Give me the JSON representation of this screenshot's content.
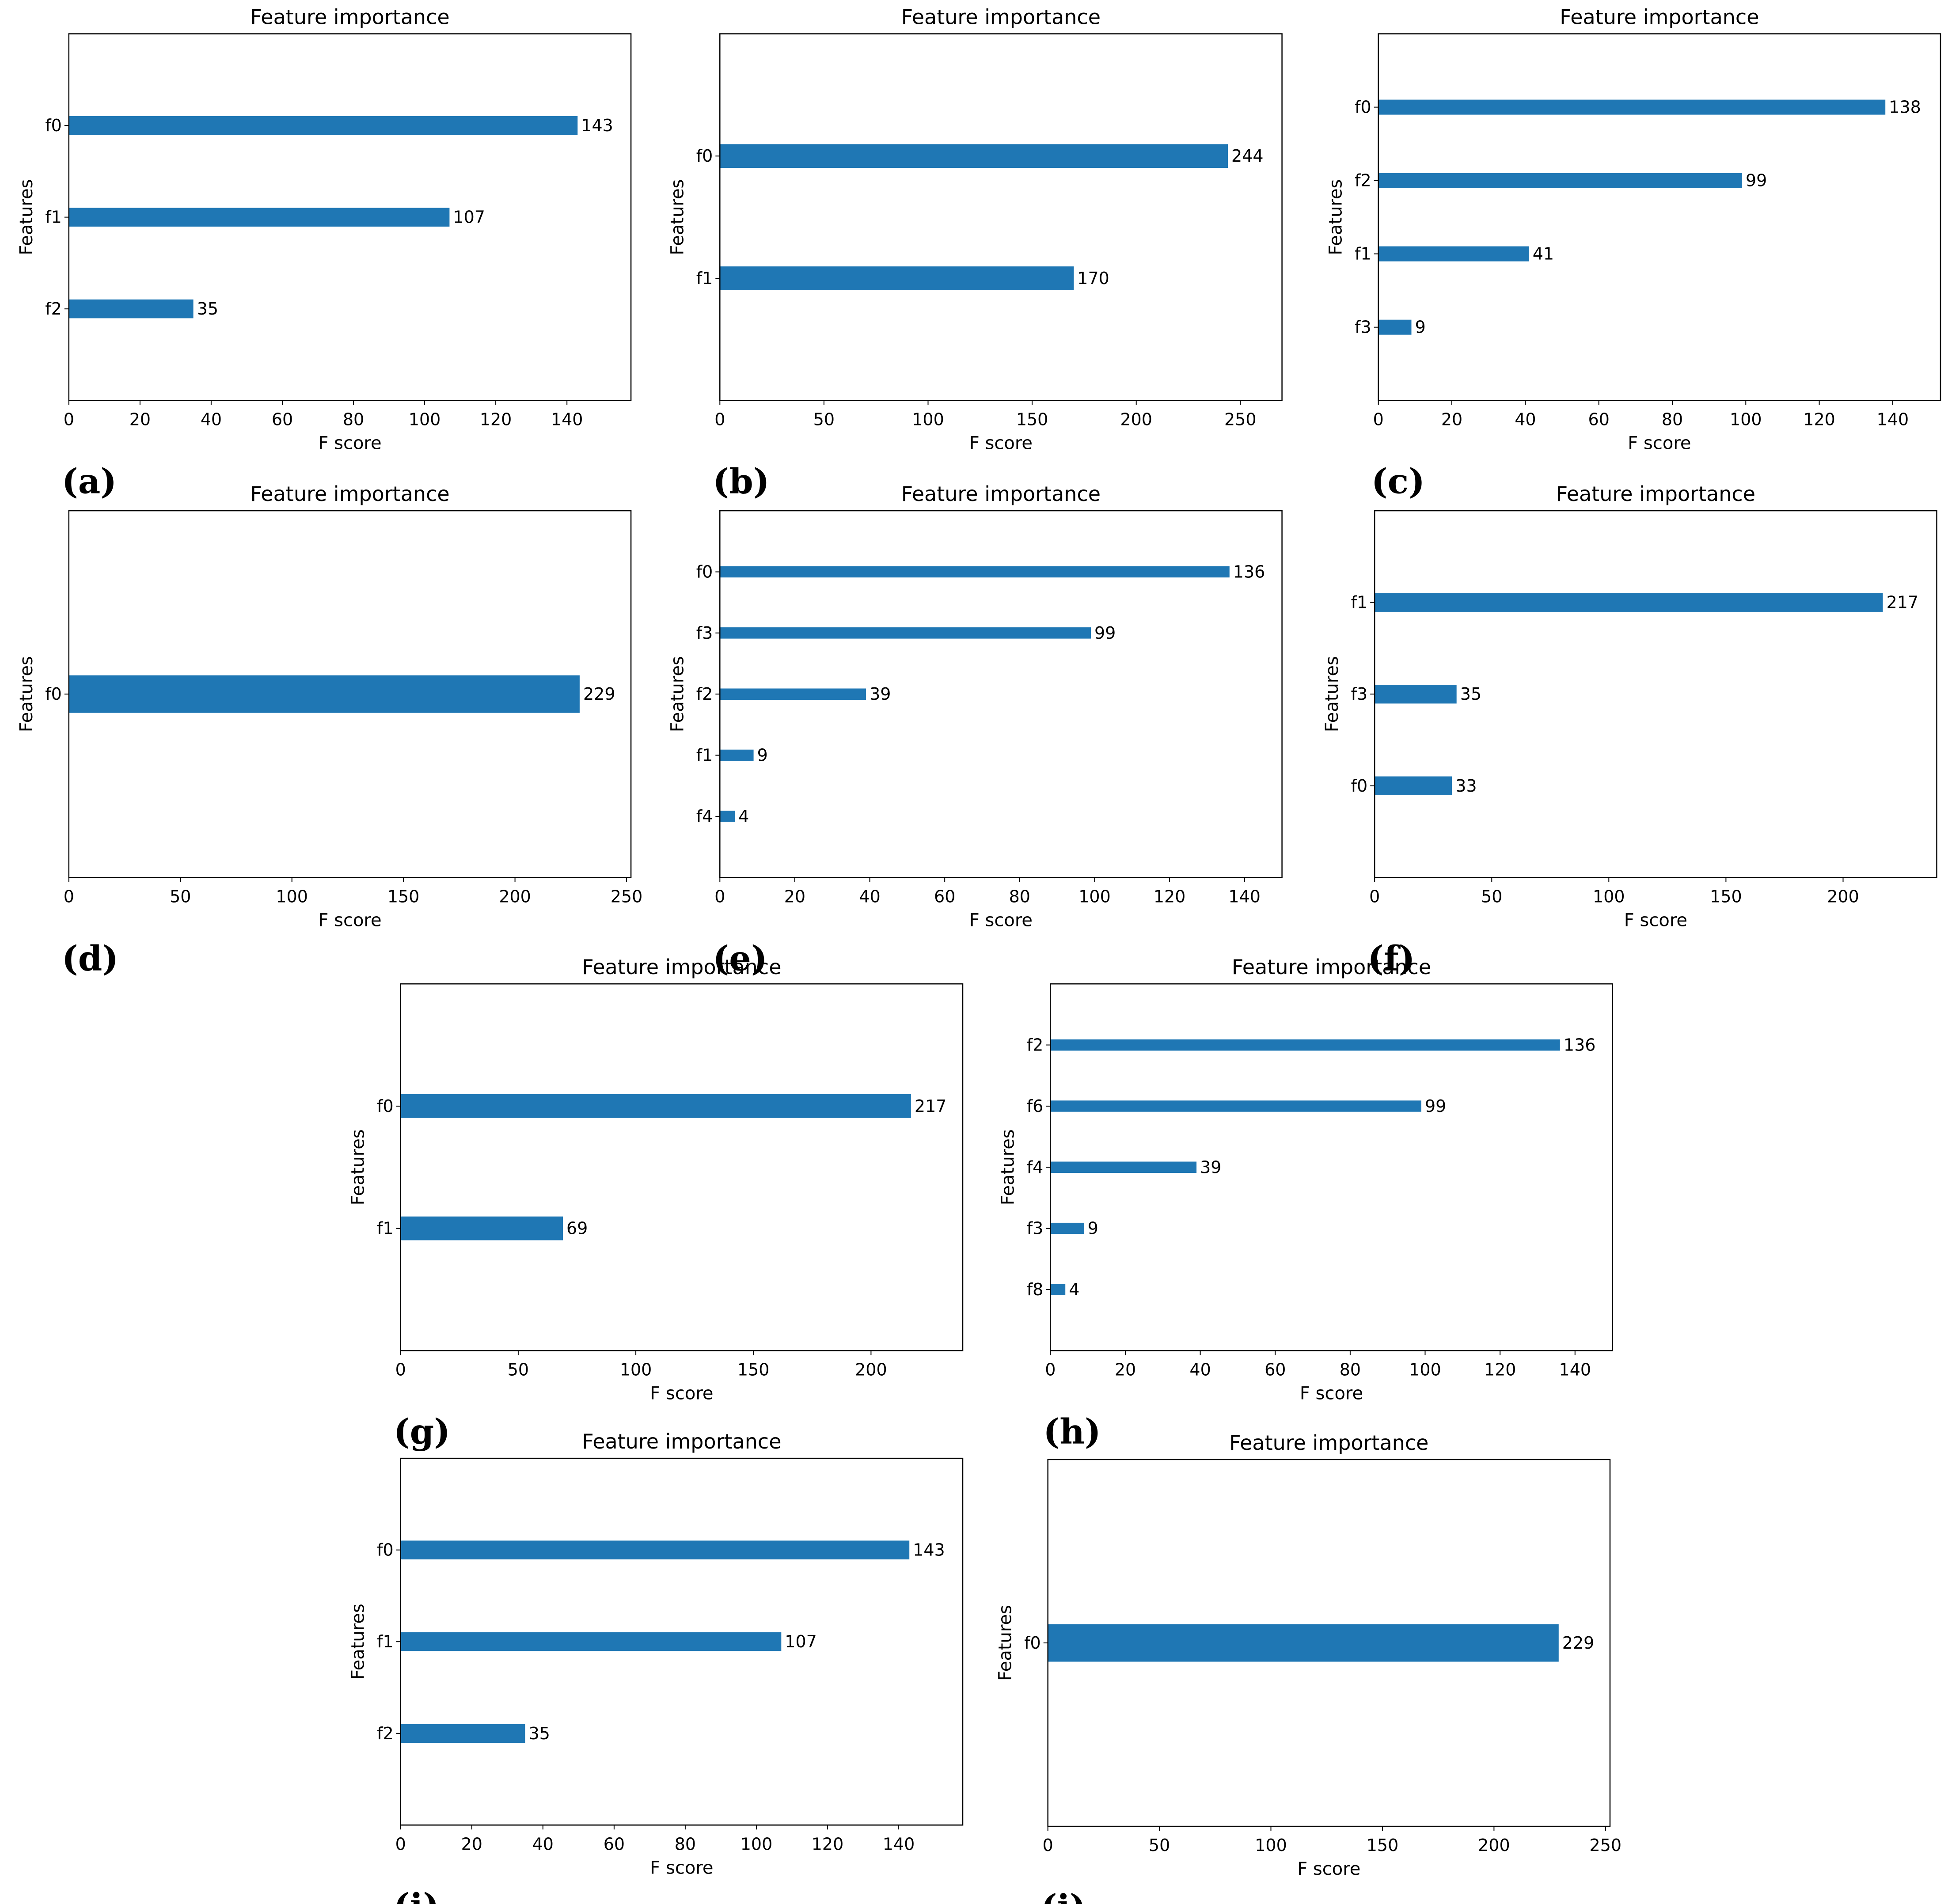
{
  "figure": {
    "colors": {
      "bar": "#1f77b4",
      "frame": "#000000",
      "text": "#000000"
    }
  },
  "chart_data": [
    {
      "panel": "(a)",
      "type": "bar",
      "orientation": "horizontal",
      "title": "Feature importance",
      "xlabel": "F score",
      "ylabel": "Features",
      "xlim": [
        0,
        158
      ],
      "xticks": [
        0,
        20,
        40,
        60,
        80,
        100,
        120,
        140
      ],
      "categories": [
        "f0",
        "f1",
        "f2"
      ],
      "values": [
        143,
        107,
        35
      ]
    },
    {
      "panel": "(b)",
      "type": "bar",
      "orientation": "horizontal",
      "title": "Feature importance",
      "xlabel": "F score",
      "ylabel": "Features",
      "xlim": [
        0,
        270
      ],
      "xticks": [
        0,
        50,
        100,
        150,
        200,
        250
      ],
      "categories": [
        "f0",
        "f1"
      ],
      "values": [
        244,
        170
      ]
    },
    {
      "panel": "(c)",
      "type": "bar",
      "orientation": "horizontal",
      "title": "Feature importance",
      "xlabel": "F score",
      "ylabel": "Features",
      "xlim": [
        0,
        153
      ],
      "xticks": [
        0,
        20,
        40,
        60,
        80,
        100,
        120,
        140
      ],
      "categories": [
        "f0",
        "f2",
        "f1",
        "f3"
      ],
      "values": [
        138,
        99,
        41,
        9
      ]
    },
    {
      "panel": "(d)",
      "type": "bar",
      "orientation": "horizontal",
      "title": "Feature importance",
      "xlabel": "F score",
      "ylabel": "Features",
      "xlim": [
        0,
        252
      ],
      "xticks": [
        0,
        50,
        100,
        150,
        200,
        250
      ],
      "categories": [
        "f0"
      ],
      "values": [
        229
      ]
    },
    {
      "panel": "(e)",
      "type": "bar",
      "orientation": "horizontal",
      "title": "Feature importance",
      "xlabel": "F score",
      "ylabel": "Features",
      "xlim": [
        0,
        150
      ],
      "xticks": [
        0,
        20,
        40,
        60,
        80,
        100,
        120,
        140
      ],
      "categories": [
        "f0",
        "f3",
        "f2",
        "f1",
        "f4"
      ],
      "values": [
        136,
        99,
        39,
        9,
        4
      ]
    },
    {
      "panel": "(f)",
      "type": "bar",
      "orientation": "horizontal",
      "title": "Feature importance",
      "xlabel": "F score",
      "ylabel": "Features",
      "xlim": [
        0,
        240
      ],
      "xticks": [
        0,
        50,
        100,
        150,
        200
      ],
      "categories": [
        "f1",
        "f3",
        "f0"
      ],
      "values": [
        217,
        35,
        33
      ]
    },
    {
      "panel": "(g)",
      "type": "bar",
      "orientation": "horizontal",
      "title": "Feature importance",
      "xlabel": "F score",
      "ylabel": "Features",
      "xlim": [
        0,
        239
      ],
      "xticks": [
        0,
        50,
        100,
        150,
        200
      ],
      "categories": [
        "f0",
        "f1"
      ],
      "values": [
        217,
        69
      ]
    },
    {
      "panel": "(h)",
      "type": "bar",
      "orientation": "horizontal",
      "title": "Feature importance",
      "xlabel": "F score",
      "ylabel": "Features",
      "xlim": [
        0,
        150
      ],
      "xticks": [
        0,
        20,
        40,
        60,
        80,
        100,
        120,
        140
      ],
      "categories": [
        "f2",
        "f6",
        "f4",
        "f3",
        "f8"
      ],
      "values": [
        136,
        99,
        39,
        9,
        4
      ]
    },
    {
      "panel": "(i)",
      "type": "bar",
      "orientation": "horizontal",
      "title": "Feature importance",
      "xlabel": "F score",
      "ylabel": "Features",
      "xlim": [
        0,
        158
      ],
      "xticks": [
        0,
        20,
        40,
        60,
        80,
        100,
        120,
        140
      ],
      "categories": [
        "f0",
        "f1",
        "f2"
      ],
      "values": [
        143,
        107,
        35
      ]
    },
    {
      "panel": "(j)",
      "type": "bar",
      "orientation": "horizontal",
      "title": "Feature importance",
      "xlabel": "F score",
      "ylabel": "Features",
      "xlim": [
        0,
        252
      ],
      "xticks": [
        0,
        50,
        100,
        150,
        200,
        250
      ],
      "categories": [
        "f0"
      ],
      "values": [
        229
      ]
    }
  ]
}
